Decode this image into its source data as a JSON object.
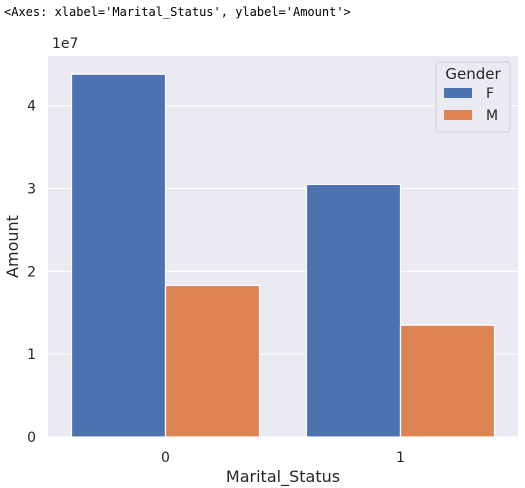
{
  "output_repr": "<Axes: xlabel='Marital_Status', ylabel='Amount'>",
  "chart_data": {
    "type": "bar",
    "categories": [
      "0",
      "1"
    ],
    "series": [
      {
        "name": "F",
        "values": [
          43800000,
          30500000
        ],
        "color": "#4c72b0"
      },
      {
        "name": "M",
        "values": [
          18300000,
          13500000
        ],
        "color": "#dd8452"
      }
    ],
    "xlabel": "Marital_Status",
    "ylabel": "Amount",
    "ylim": [
      0,
      46000000
    ],
    "yticks": [
      "0",
      "1",
      "2",
      "3",
      "4"
    ],
    "ytick_values": [
      0,
      10000000,
      20000000,
      30000000,
      40000000
    ],
    "offset_text": "1e7",
    "legend_title": "Gender",
    "legend_position": "top-right",
    "grid": true,
    "background": "#eaeaf2"
  }
}
